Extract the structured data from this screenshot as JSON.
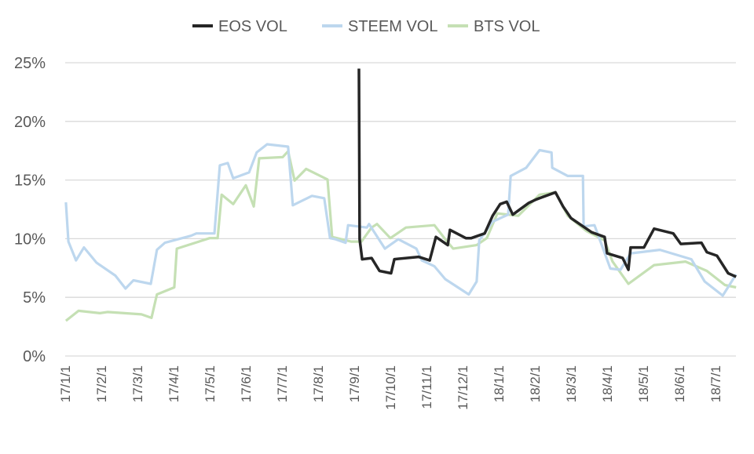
{
  "chart_data": {
    "type": "line",
    "title": "",
    "xlabel": "",
    "ylabel": "",
    "x_unit": "months since 17/1/1",
    "xlim": [
      0,
      18.57
    ],
    "ylim": [
      0,
      25
    ],
    "grid": true,
    "legend_position": "top",
    "y_ticks": [
      "0%",
      "5%",
      "10%",
      "15%",
      "20%",
      "25%"
    ],
    "y_tick_values": [
      0,
      5,
      10,
      15,
      20,
      25
    ],
    "x_ticks": [
      "17/1/1",
      "17/2/1",
      "17/3/1",
      "17/4/1",
      "17/5/1",
      "17/6/1",
      "17/7/1",
      "17/8/1",
      "17/9/1",
      "17/10/1",
      "17/11/1",
      "17/12/1",
      "18/1/1",
      "18/2/1",
      "18/3/1",
      "18/4/1",
      "18/5/1",
      "18/6/1",
      "18/7/1"
    ],
    "series": [
      {
        "name": "EOS VOL",
        "color": "#262626",
        "points": [
          [
            8.13,
            24.5
          ],
          [
            8.15,
            9.8
          ],
          [
            8.22,
            8.4
          ],
          [
            8.48,
            8.2
          ],
          [
            8.7,
            7.4
          ],
          [
            9.02,
            6.9
          ],
          [
            9.11,
            8.4
          ],
          [
            9.78,
            8.3
          ],
          [
            10.09,
            8.3
          ],
          [
            10.26,
            10.0
          ],
          [
            10.59,
            9.6
          ],
          [
            10.65,
            10.6
          ],
          [
            11.09,
            10.2
          ],
          [
            11.24,
            9.9
          ],
          [
            11.61,
            10.6
          ],
          [
            11.83,
            11.8
          ],
          [
            12.04,
            13.1
          ],
          [
            12.22,
            13.0
          ],
          [
            12.39,
            12.2
          ],
          [
            12.83,
            12.9
          ],
          [
            13.04,
            13.5
          ],
          [
            13.57,
            13.8
          ],
          [
            13.78,
            12.9
          ],
          [
            14.0,
            11.6
          ],
          [
            14.57,
            10.7
          ],
          [
            14.93,
            10.0
          ],
          [
            15.0,
            8.9
          ],
          [
            15.43,
            8.2
          ],
          [
            15.59,
            7.5
          ],
          [
            15.65,
            9.1
          ],
          [
            16.02,
            9.4
          ],
          [
            16.3,
            10.7
          ],
          [
            16.83,
            10.6
          ],
          [
            17.04,
            9.4
          ],
          [
            17.61,
            9.8
          ],
          [
            17.76,
            8.7
          ],
          [
            18.04,
            8.7
          ],
          [
            18.35,
            6.9
          ],
          [
            18.57,
            6.9
          ]
        ]
      },
      {
        "name": "STEEM VOL",
        "color": "#bdd7ee",
        "points": [
          [
            0.02,
            13.1
          ],
          [
            0.09,
            9.6
          ],
          [
            0.3,
            8.3
          ],
          [
            0.52,
            9.1
          ],
          [
            0.87,
            8.1
          ],
          [
            1.39,
            6.7
          ],
          [
            1.67,
            5.9
          ],
          [
            1.89,
            6.3
          ],
          [
            2.37,
            6.3
          ],
          [
            2.54,
            8.9
          ],
          [
            2.76,
            9.8
          ],
          [
            3.48,
            10.1
          ],
          [
            3.63,
            10.6
          ],
          [
            4.13,
            10.3
          ],
          [
            4.28,
            16.4
          ],
          [
            4.5,
            16.3
          ],
          [
            4.65,
            15.3
          ],
          [
            5.09,
            15.5
          ],
          [
            5.3,
            17.5
          ],
          [
            5.59,
            17.9
          ],
          [
            6.17,
            18.0
          ],
          [
            6.3,
            12.7
          ],
          [
            6.83,
            13.8
          ],
          [
            7.17,
            13.3
          ],
          [
            7.33,
            10.2
          ],
          [
            7.48,
            9.8
          ],
          [
            7.76,
            9.8
          ],
          [
            7.83,
            11.0
          ],
          [
            8.35,
            11.1
          ],
          [
            8.41,
            11.1
          ],
          [
            8.85,
            9.3
          ],
          [
            9.22,
            9.8
          ],
          [
            9.72,
            9.3
          ],
          [
            9.87,
            8.0
          ],
          [
            10.22,
            7.8
          ],
          [
            10.52,
            6.4
          ],
          [
            11.17,
            5.4
          ],
          [
            11.39,
            6.2
          ],
          [
            11.46,
            10.0
          ],
          [
            11.83,
            11.3
          ],
          [
            12.26,
            12.2
          ],
          [
            12.33,
            15.2
          ],
          [
            12.76,
            16.2
          ],
          [
            13.13,
            17.4
          ],
          [
            13.46,
            17.5
          ],
          [
            13.48,
            15.9
          ],
          [
            13.91,
            15.5
          ],
          [
            14.33,
            15.2
          ],
          [
            14.35,
            11.2
          ],
          [
            14.65,
            11.0
          ],
          [
            15.09,
            7.6
          ],
          [
            15.37,
            7.2
          ],
          [
            15.65,
            8.9
          ],
          [
            16.46,
            8.9
          ],
          [
            17.33,
            8.4
          ],
          [
            17.7,
            6.2
          ],
          [
            18.2,
            5.3
          ],
          [
            18.57,
            6.8
          ]
        ]
      },
      {
        "name": "BTS VOL",
        "color": "#c5e0b4",
        "points": [
          [
            0.02,
            3.0
          ],
          [
            0.37,
            3.7
          ],
          [
            0.96,
            3.8
          ],
          [
            1.17,
            3.6
          ],
          [
            2.11,
            3.7
          ],
          [
            2.39,
            3.1
          ],
          [
            2.54,
            5.4
          ],
          [
            3.02,
            5.7
          ],
          [
            3.09,
            9.3
          ],
          [
            4.0,
            9.9
          ],
          [
            4.22,
            10.2
          ],
          [
            4.33,
            13.6
          ],
          [
            4.65,
            13.1
          ],
          [
            5.0,
            14.4
          ],
          [
            5.22,
            12.9
          ],
          [
            5.37,
            16.7
          ],
          [
            6.02,
            17.1
          ],
          [
            6.17,
            17.3
          ],
          [
            6.35,
            15.1
          ],
          [
            6.67,
            15.8
          ],
          [
            7.26,
            15.2
          ],
          [
            7.39,
            10.0
          ],
          [
            7.91,
            9.9
          ],
          [
            8.2,
            9.6
          ],
          [
            8.48,
            11.1
          ],
          [
            8.63,
            11.1
          ],
          [
            9.0,
            10.2
          ],
          [
            9.43,
            10.8
          ],
          [
            10.22,
            11.3
          ],
          [
            10.52,
            9.8
          ],
          [
            10.74,
            9.3
          ],
          [
            11.39,
            9.3
          ],
          [
            11.67,
            10.2
          ],
          [
            11.96,
            12.0
          ],
          [
            12.54,
            12.1
          ],
          [
            13.13,
            13.6
          ],
          [
            13.57,
            14.1
          ],
          [
            13.91,
            11.8
          ],
          [
            14.43,
            10.8
          ],
          [
            14.93,
            9.7
          ],
          [
            15.15,
            8.2
          ],
          [
            15.59,
            6.0
          ],
          [
            16.3,
            7.9
          ],
          [
            17.17,
            7.9
          ],
          [
            17.76,
            7.4
          ],
          [
            18.26,
            5.9
          ],
          [
            18.57,
            6.0
          ]
        ]
      }
    ]
  }
}
